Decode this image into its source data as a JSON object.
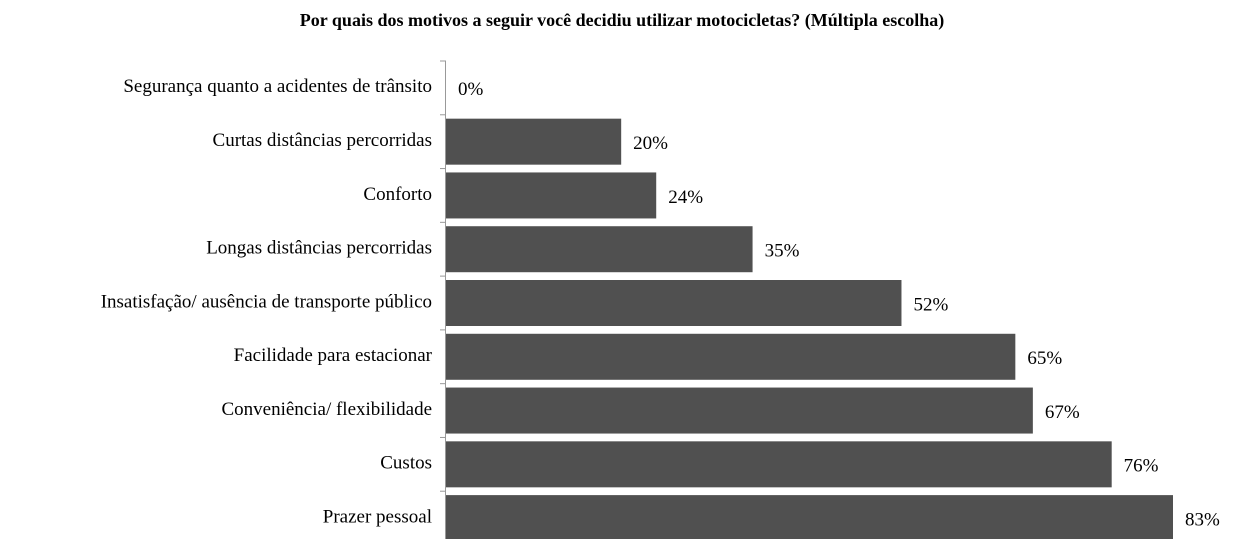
{
  "chart_data": {
    "type": "barh",
    "title": "Por quais dos motivos a seguir você decidiu utilizar motocicletas? (Múltipla escolha)",
    "categories": [
      "Segurança quanto a acidentes de trânsito",
      "Curtas distâncias percorridas",
      "Conforto",
      "Longas distâncias percorridas",
      "Insatisfação/ ausência de transporte público",
      "Facilidade para estacionar",
      "Conveniência/ flexibilidade",
      "Custos",
      "Prazer pessoal"
    ],
    "values": [
      0,
      20,
      24,
      35,
      52,
      65,
      67,
      76,
      83
    ],
    "value_labels": [
      "0%",
      "20%",
      "24%",
      "35%",
      "52%",
      "65%",
      "67%",
      "76%",
      "83%"
    ],
    "color": "#505050"
  }
}
